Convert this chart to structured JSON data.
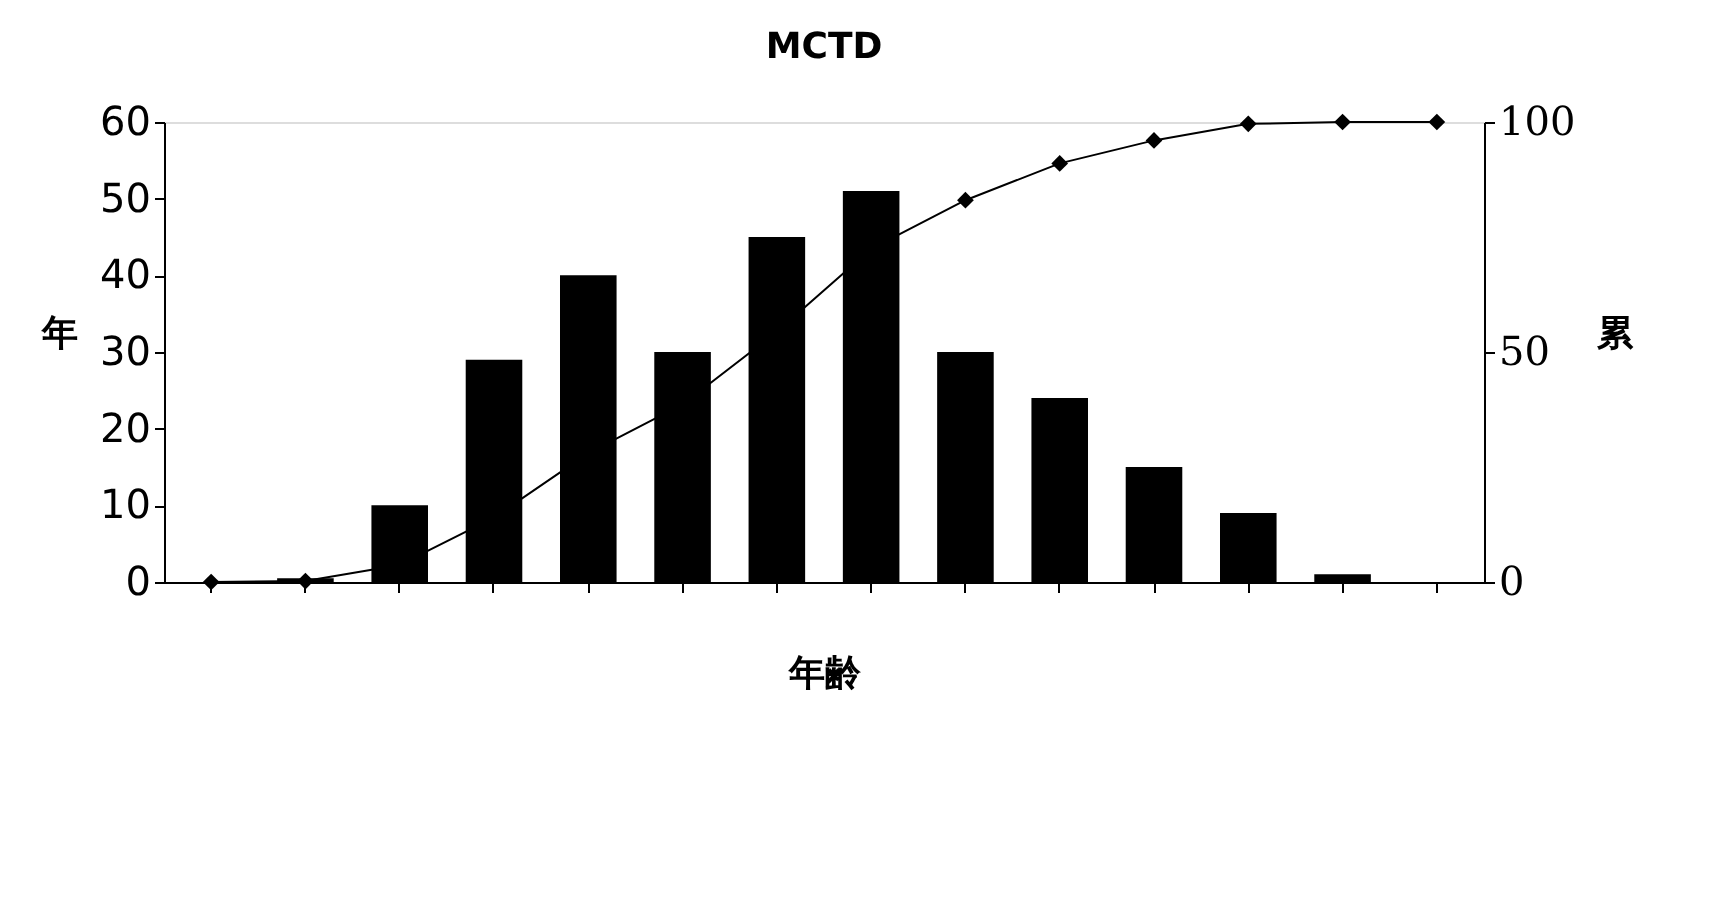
{
  "chart_data": {
    "type": "bar",
    "title": "MCTD",
    "xlabel": "年齢",
    "ylabel": "年",
    "y2label": "累",
    "categories": [
      null,
      null,
      null,
      null,
      null,
      null,
      null,
      null,
      null,
      null,
      null,
      null,
      null,
      null
    ],
    "series": [
      {
        "color": "#000000",
        "values": [
          0,
          0.5,
          10,
          29,
          40,
          30,
          45,
          51,
          30,
          24,
          15,
          9,
          1,
          null
        ]
      },
      {
        "type": "line",
        "axis": "y2",
        "color": "#000000",
        "marker": "diamond",
        "values": [
          0,
          0.2,
          3.7,
          14,
          28,
          38.6,
          54.4,
          72.4,
          83,
          91,
          96,
          99.6,
          100,
          100
        ]
      }
    ],
    "ylim": [
      0,
      60
    ],
    "yticks": [
      0,
      10,
      20,
      30,
      40,
      50,
      60
    ],
    "y2lim": [
      0,
      100
    ],
    "y2ticks": [
      0,
      50,
      100
    ],
    "grid": false
  }
}
